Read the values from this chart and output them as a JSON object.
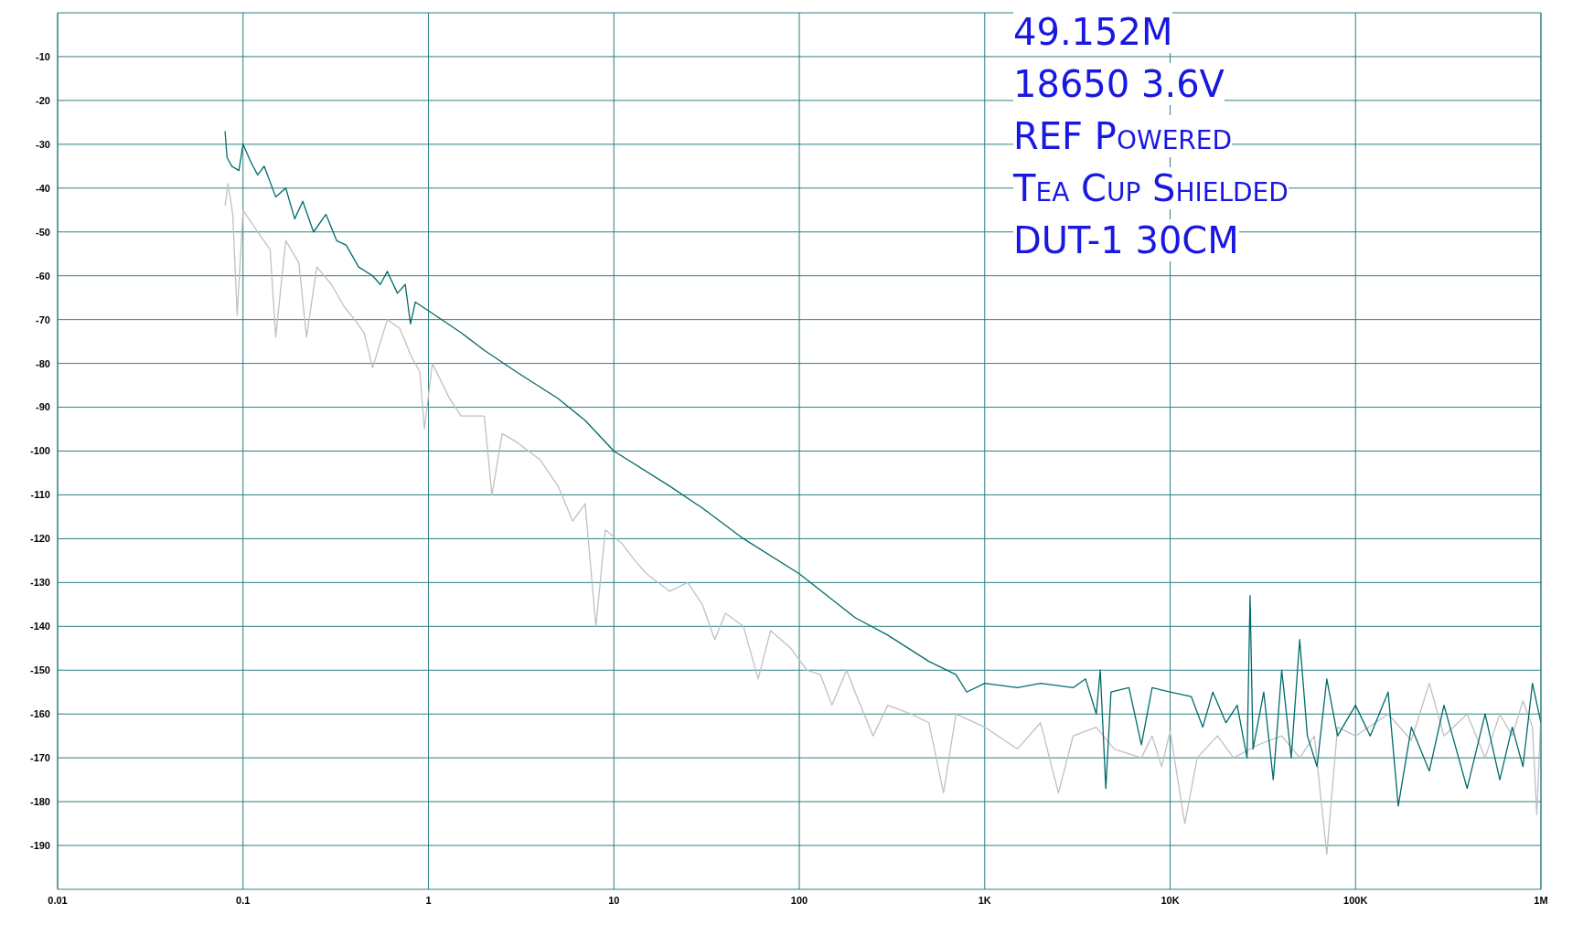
{
  "chart_data": {
    "type": "line",
    "log": "x",
    "grid": true,
    "annotations": [
      "49.152M",
      "18650 3.6V",
      "REF Powered",
      "Tea Cup Shielded",
      "DUT-1 30CM"
    ],
    "xlim": [
      0.01,
      1000000
    ],
    "xticks": [
      0.01,
      0.1,
      1,
      10,
      100,
      {
        "value": 1000,
        "label": "1K"
      },
      {
        "value": 10000,
        "label": "10K"
      },
      {
        "value": 100000,
        "label": "100K"
      },
      {
        "value": 1000000,
        "label": "1M"
      }
    ],
    "ylim": [
      -200,
      0
    ],
    "yticks": [
      -190,
      -180,
      -170,
      -160,
      -150,
      -140,
      -130,
      -120,
      -110,
      -100,
      -90,
      -80,
      -70,
      -60,
      -50,
      -40,
      -30,
      -20,
      -10
    ],
    "series": [
      {
        "color": "#c0c0c0",
        "x": [
          0.08,
          0.083,
          0.088,
          0.093,
          0.1,
          0.12,
          0.14,
          0.15,
          0.17,
          0.2,
          0.22,
          0.25,
          0.3,
          0.35,
          0.4,
          0.45,
          0.5,
          0.6,
          0.7,
          0.8,
          0.9,
          0.95,
          1.05,
          1.3,
          1.5,
          2,
          2.2,
          2.5,
          3,
          4,
          5,
          6,
          7,
          8,
          9,
          11,
          13,
          15,
          20,
          25,
          30,
          35,
          40,
          50,
          60,
          70,
          90,
          110,
          130,
          150,
          180,
          200,
          250,
          300,
          400,
          500,
          600,
          700,
          1000,
          1500,
          2000,
          2500,
          3000,
          4000,
          5000,
          7000,
          8000,
          9000,
          10000,
          12000,
          14000,
          18000,
          22000,
          30000,
          40000,
          50000,
          60000,
          70000,
          80000,
          100000,
          150000,
          200000,
          250000,
          300000,
          400000,
          500000,
          600000,
          700000,
          800000,
          900000,
          950000,
          1000000
        ],
        "values": [
          -44,
          -39,
          -46,
          -69,
          -45,
          -50,
          -54,
          -74,
          -52,
          -57,
          -74,
          -58,
          -62,
          -67,
          -70,
          -73,
          -81,
          -70,
          -72,
          -78,
          -82,
          -95,
          -80,
          -88,
          -92,
          -92,
          -110,
          -96,
          -98,
          -102,
          -108,
          -116,
          -112,
          -140,
          -118,
          -121,
          -125,
          -128,
          -132,
          -130,
          -135,
          -143,
          -137,
          -140,
          -152,
          -141,
          -145,
          -150,
          -151,
          -158,
          -150,
          -155,
          -165,
          -158,
          -160,
          -162,
          -178,
          -160,
          -163,
          -168,
          -162,
          -178,
          -165,
          -163,
          -168,
          -170,
          -165,
          -172,
          -164,
          -185,
          -170,
          -165,
          -170,
          -167,
          -165,
          -170,
          -165,
          -192,
          -163,
          -165,
          -160,
          -166,
          -153,
          -165,
          -160,
          -170,
          -160,
          -165,
          -157,
          -163,
          -183,
          -160
        ]
      },
      {
        "color": "#006b6b",
        "x": [
          0.08,
          0.082,
          0.087,
          0.095,
          0.1,
          0.11,
          0.12,
          0.13,
          0.15,
          0.17,
          0.19,
          0.21,
          0.24,
          0.28,
          0.32,
          0.36,
          0.42,
          0.5,
          0.55,
          0.6,
          0.68,
          0.75,
          0.8,
          0.85,
          1,
          1.5,
          2,
          3,
          5,
          7,
          10,
          20,
          30,
          50,
          100,
          200,
          300,
          500,
          700,
          800,
          1000,
          1500,
          2000,
          3000,
          3500,
          4000,
          4200,
          4500,
          4800,
          6000,
          7000,
          8000,
          10000,
          13000,
          15000,
          17000,
          20000,
          23000,
          26000,
          27000,
          28000,
          32000,
          36000,
          40000,
          45000,
          50000,
          55000,
          62000,
          70000,
          80000,
          100000,
          120000,
          150000,
          170000,
          200000,
          250000,
          300000,
          400000,
          500000,
          600000,
          700000,
          800000,
          900000,
          1000000
        ],
        "values": [
          -27,
          -33,
          -35,
          -36,
          -30,
          -34,
          -37,
          -35,
          -42,
          -40,
          -47,
          -43,
          -50,
          -46,
          -52,
          -53,
          -58,
          -60,
          -62,
          -59,
          -64,
          -62,
          -71,
          -66,
          -68,
          -73,
          -77,
          -82,
          -88,
          -93,
          -100,
          -108,
          -113,
          -120,
          -128,
          -138,
          -142,
          -148,
          -151,
          -155,
          -153,
          -154,
          -153,
          -154,
          -152,
          -160,
          -150,
          -177,
          -155,
          -154,
          -167,
          -154,
          -155,
          -156,
          -163,
          -155,
          -162,
          -158,
          -170,
          -133,
          -168,
          -155,
          -175,
          -150,
          -170,
          -143,
          -165,
          -172,
          -152,
          -165,
          -158,
          -165,
          -155,
          -181,
          -163,
          -173,
          -158,
          -177,
          -160,
          -175,
          -163,
          -172,
          -153,
          -162
        ]
      }
    ]
  }
}
